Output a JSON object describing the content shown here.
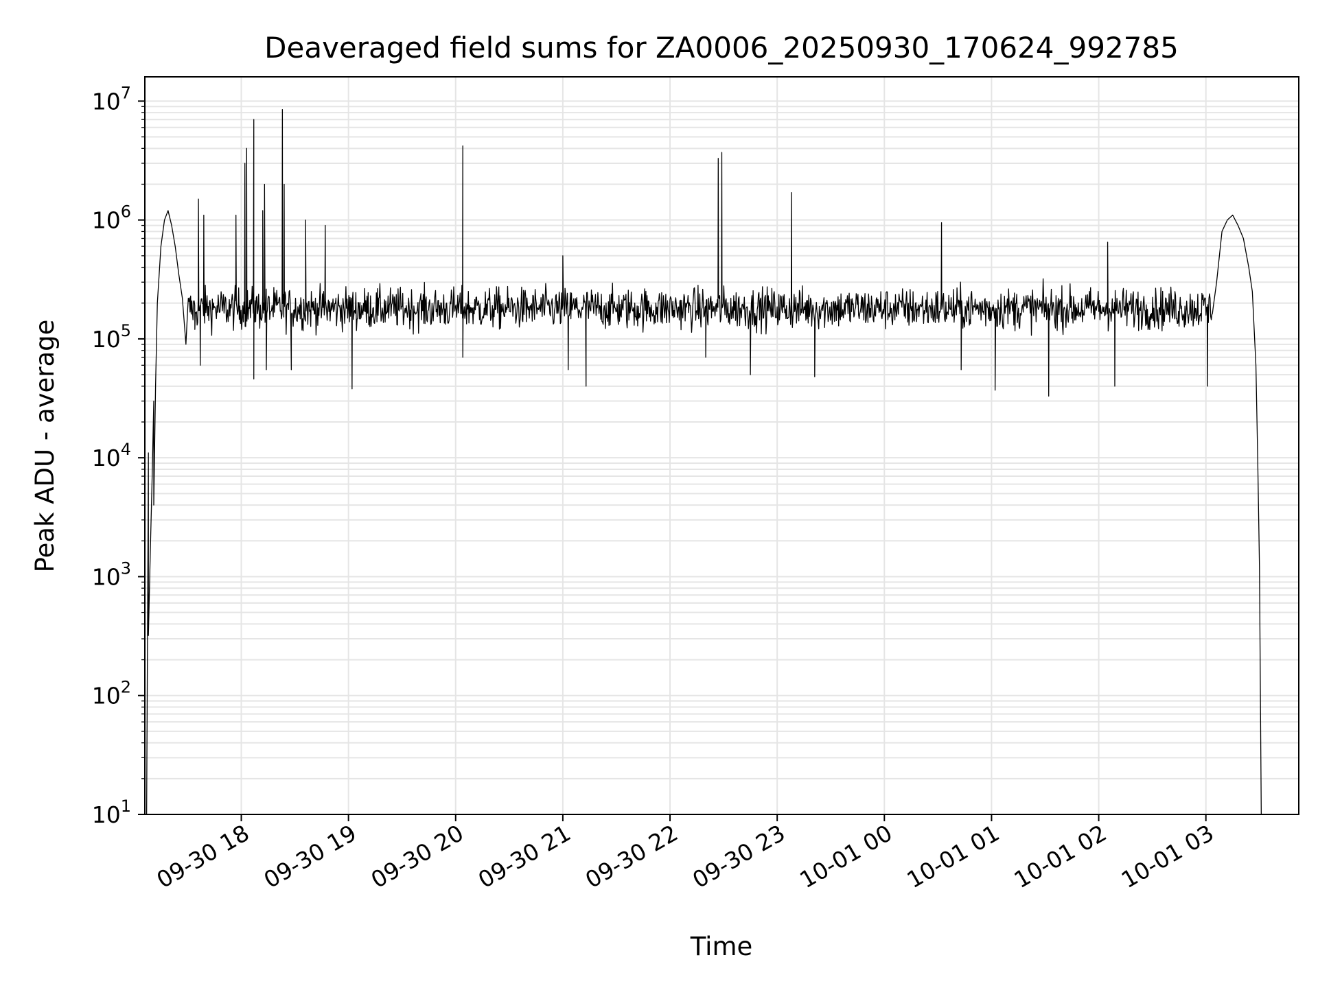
{
  "chart_data": {
    "type": "line",
    "title": "Deaveraged field sums for ZA0006_20250930_170624_992785",
    "xlabel": "Time",
    "ylabel": "Peak ADU - average",
    "yscale": "log",
    "ylim": [
      10,
      16000000
    ],
    "xlim": [
      "2025-09-30 17:06",
      "2025-10-01 03:52"
    ],
    "grid": true,
    "legend": "none",
    "line_color": "#000000",
    "grid_color": "#e5e5e5",
    "x_ticks": [
      {
        "value": "2025-09-30 18:00",
        "label": "09-30 18"
      },
      {
        "value": "2025-09-30 19:00",
        "label": "09-30 19"
      },
      {
        "value": "2025-09-30 20:00",
        "label": "09-30 20"
      },
      {
        "value": "2025-09-30 21:00",
        "label": "09-30 21"
      },
      {
        "value": "2025-09-30 22:00",
        "label": "09-30 22"
      },
      {
        "value": "2025-09-30 23:00",
        "label": "09-30 23"
      },
      {
        "value": "2025-10-01 00:00",
        "label": "10-01 00"
      },
      {
        "value": "2025-10-01 01:00",
        "label": "10-01 01"
      },
      {
        "value": "2025-10-01 02:00",
        "label": "10-01 02"
      },
      {
        "value": "2025-10-01 03:00",
        "label": "10-01 03"
      }
    ],
    "y_ticks": [
      {
        "value": 10,
        "base": "10",
        "exp": "1"
      },
      {
        "value": 100,
        "base": "10",
        "exp": "2"
      },
      {
        "value": 1000,
        "base": "10",
        "exp": "3"
      },
      {
        "value": 10000,
        "base": "10",
        "exp": "4"
      },
      {
        "value": 100000,
        "base": "10",
        "exp": "5"
      },
      {
        "value": 1000000,
        "base": "10",
        "exp": "6"
      },
      {
        "value": 10000000,
        "base": "10",
        "exp": "7"
      }
    ],
    "series": [
      {
        "baseline": 180000,
        "points": [
          [
            "2025-09-30 17:07",
            10
          ],
          [
            "2025-09-30 17:08",
            11000
          ],
          [
            "2025-09-30 17:08",
            320
          ],
          [
            "2025-09-30 17:09",
            1500
          ],
          [
            "2025-09-30 17:10",
            6000
          ],
          [
            "2025-09-30 17:11",
            30000
          ],
          [
            "2025-09-30 17:11",
            4000
          ],
          [
            "2025-09-30 17:12",
            40000
          ],
          [
            "2025-09-30 17:13",
            200000
          ],
          [
            "2025-09-30 17:15",
            600000
          ],
          [
            "2025-09-30 17:17",
            1000000
          ],
          [
            "2025-09-30 17:19",
            1200000
          ],
          [
            "2025-09-30 17:21",
            900000
          ],
          [
            "2025-09-30 17:23",
            600000
          ],
          [
            "2025-09-30 17:25",
            350000
          ],
          [
            "2025-09-30 17:27",
            220000
          ],
          [
            "2025-09-30 17:30",
            180000
          ],
          [
            "2025-10-01 03:04",
            180000
          ],
          [
            "2025-10-01 03:06",
            300000
          ],
          [
            "2025-10-01 03:09",
            800000
          ],
          [
            "2025-10-01 03:12",
            1000000
          ],
          [
            "2025-10-01 03:15",
            1100000
          ],
          [
            "2025-10-01 03:18",
            900000
          ],
          [
            "2025-10-01 03:21",
            700000
          ],
          [
            "2025-10-01 03:24",
            400000
          ],
          [
            "2025-10-01 03:26",
            250000
          ],
          [
            "2025-10-01 03:28",
            60000
          ],
          [
            "2025-10-01 03:29",
            10000
          ],
          [
            "2025-10-01 03:30",
            1200
          ],
          [
            "2025-10-01 03:31",
            10
          ]
        ],
        "spikes": [
          [
            "2025-09-30 17:36",
            1500000
          ],
          [
            "2025-09-30 17:39",
            1100000
          ],
          [
            "2025-09-30 17:57",
            1100000
          ],
          [
            "2025-09-30 18:02",
            3000000
          ],
          [
            "2025-09-30 18:03",
            4000000
          ],
          [
            "2025-09-30 18:07",
            7000000
          ],
          [
            "2025-09-30 18:12",
            1200000
          ],
          [
            "2025-09-30 18:13",
            2000000
          ],
          [
            "2025-09-30 18:23",
            8500000
          ],
          [
            "2025-09-30 18:24",
            2000000
          ],
          [
            "2025-09-30 18:36",
            1000000
          ],
          [
            "2025-09-30 18:47",
            900000
          ],
          [
            "2025-09-30 20:04",
            4200000
          ],
          [
            "2025-09-30 21:00",
            500000
          ],
          [
            "2025-09-30 22:27",
            3300000
          ],
          [
            "2025-09-30 22:29",
            3700000
          ],
          [
            "2025-09-30 23:08",
            1700000
          ],
          [
            "2025-10-01 00:32",
            950000
          ],
          [
            "2025-10-01 02:05",
            650000
          ]
        ],
        "dips": [
          [
            "2025-09-30 17:29",
            90000
          ],
          [
            "2025-09-30 17:34",
            120000
          ],
          [
            "2025-09-30 17:37",
            60000
          ],
          [
            "2025-09-30 18:07",
            46000
          ],
          [
            "2025-09-30 18:14",
            55000
          ],
          [
            "2025-09-30 18:28",
            55000
          ],
          [
            "2025-09-30 19:02",
            38000
          ],
          [
            "2025-09-30 20:04",
            70000
          ],
          [
            "2025-09-30 21:03",
            55000
          ],
          [
            "2025-09-30 21:13",
            40000
          ],
          [
            "2025-09-30 22:20",
            70000
          ],
          [
            "2025-09-30 22:45",
            50000
          ],
          [
            "2025-09-30 23:21",
            48000
          ],
          [
            "2025-10-01 00:43",
            55000
          ],
          [
            "2025-10-01 01:02",
            37000
          ],
          [
            "2025-10-01 01:32",
            33000
          ],
          [
            "2025-10-01 02:09",
            40000
          ],
          [
            "2025-10-01 03:01",
            40000
          ]
        ]
      }
    ]
  }
}
